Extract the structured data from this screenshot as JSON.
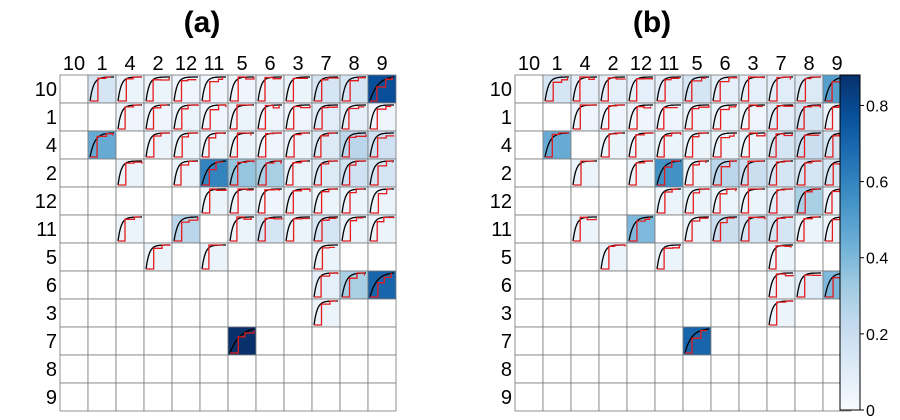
{
  "chart_data": [
    {
      "type": "heatmap",
      "title": "(a)",
      "labels": [
        "10",
        "1",
        "4",
        "2",
        "12",
        "11",
        "5",
        "6",
        "3",
        "7",
        "8",
        "9"
      ],
      "values": [
        [
          null,
          0.15,
          0.05,
          0.05,
          0.04,
          0.04,
          0.04,
          0.05,
          0.05,
          0.15,
          0.15,
          0.78
        ],
        [
          null,
          null,
          0.04,
          0.04,
          0.05,
          0.04,
          0.05,
          0.04,
          0.04,
          0.1,
          0.08,
          0.04
        ],
        [
          null,
          0.45,
          null,
          0.05,
          0.05,
          0.05,
          0.05,
          0.04,
          0.05,
          0.12,
          0.25,
          0.18
        ],
        [
          null,
          null,
          0.05,
          null,
          0.05,
          0.6,
          0.35,
          0.3,
          0.05,
          0.12,
          0.18,
          0.15
        ],
        [
          null,
          null,
          null,
          null,
          null,
          0.05,
          0.05,
          0.04,
          0.05,
          0.05,
          0.05,
          0.05
        ],
        [
          null,
          null,
          0.05,
          null,
          0.25,
          null,
          0.05,
          0.15,
          0.05,
          0.15,
          0.05,
          0.05
        ],
        [
          null,
          null,
          null,
          0.05,
          null,
          0.05,
          null,
          null,
          null,
          0.05,
          null,
          null
        ],
        [
          null,
          null,
          null,
          null,
          null,
          null,
          null,
          null,
          null,
          0.08,
          0.3,
          0.7
        ],
        [
          null,
          null,
          null,
          null,
          null,
          null,
          null,
          null,
          null,
          0.05,
          null,
          null
        ],
        [
          null,
          null,
          null,
          null,
          null,
          null,
          0.9,
          null,
          null,
          null,
          null,
          null
        ],
        [
          null,
          null,
          null,
          null,
          null,
          null,
          null,
          null,
          null,
          null,
          null,
          null
        ],
        [
          null,
          null,
          null,
          null,
          null,
          null,
          null,
          null,
          null,
          null,
          null,
          null
        ]
      ]
    },
    {
      "type": "heatmap",
      "title": "(b)",
      "labels": [
        "10",
        "1",
        "4",
        "2",
        "12",
        "11",
        "5",
        "6",
        "3",
        "7",
        "8",
        "9"
      ],
      "values": [
        [
          null,
          0.15,
          0.08,
          0.08,
          0.08,
          0.08,
          0.15,
          0.08,
          0.08,
          0.1,
          0.12,
          0.5
        ],
        [
          null,
          null,
          0.04,
          0.04,
          0.04,
          0.04,
          0.05,
          0.05,
          0.04,
          0.1,
          0.15,
          0.05
        ],
        [
          null,
          0.45,
          null,
          0.05,
          0.05,
          0.05,
          0.05,
          0.05,
          0.05,
          0.15,
          0.2,
          0.15
        ],
        [
          null,
          null,
          0.05,
          null,
          0.05,
          0.55,
          0.05,
          0.25,
          0.2,
          0.15,
          0.15,
          0.15
        ],
        [
          null,
          null,
          null,
          null,
          null,
          0.05,
          0.05,
          0.05,
          0.05,
          0.1,
          0.3,
          0.05
        ],
        [
          null,
          null,
          0.05,
          null,
          0.4,
          null,
          0.05,
          0.2,
          0.15,
          0.15,
          0.05,
          0.05
        ],
        [
          null,
          null,
          null,
          0.05,
          null,
          0.05,
          null,
          null,
          null,
          0.05,
          null,
          null
        ],
        [
          null,
          null,
          null,
          null,
          null,
          null,
          null,
          null,
          null,
          0.05,
          0.1,
          0.4
        ],
        [
          null,
          null,
          null,
          null,
          null,
          null,
          null,
          null,
          null,
          0.05,
          null,
          null
        ],
        [
          null,
          null,
          null,
          null,
          null,
          null,
          0.7,
          null,
          null,
          null,
          null,
          null
        ],
        [
          null,
          null,
          null,
          null,
          null,
          null,
          null,
          null,
          null,
          null,
          null,
          null
        ],
        [
          null,
          null,
          null,
          null,
          null,
          null,
          null,
          null,
          null,
          null,
          null,
          null
        ]
      ]
    }
  ],
  "colorbar": {
    "ticks": [
      0,
      0.2,
      0.4,
      0.6,
      0.8
    ],
    "tick_labels": [
      "0",
      "0.2",
      "0.4",
      "0.6",
      "0.8"
    ],
    "min": 0,
    "max": 0.88,
    "colors": [
      "#f7fbff",
      "#deebf7",
      "#c6dbef",
      "#9ecae1",
      "#6baed6",
      "#4292c6",
      "#2171b5",
      "#08519c",
      "#08306b"
    ]
  },
  "colors": {
    "model_curve": "#000000",
    "empirical_curve": "#e41a1c",
    "grid": "#777777"
  }
}
